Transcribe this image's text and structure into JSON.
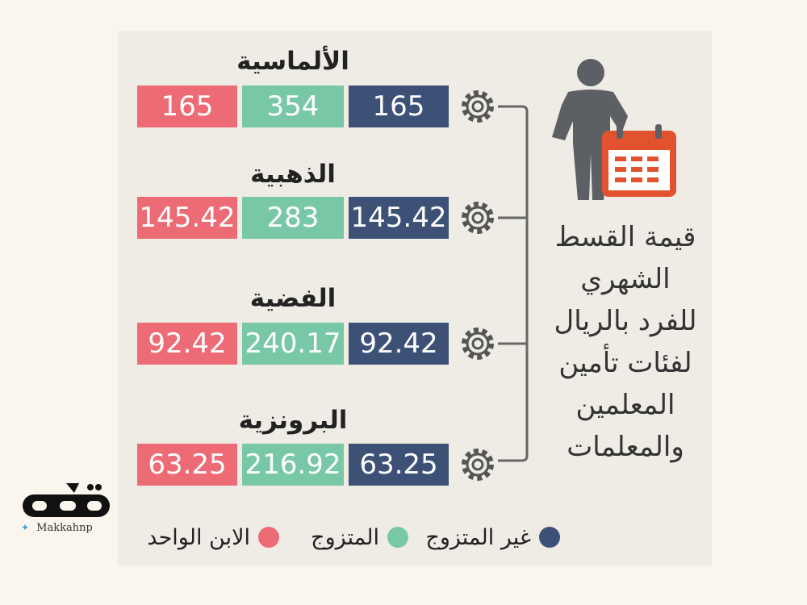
{
  "title_lines": [
    "قيمة القسط",
    "الشهري",
    "للفرد بالريال",
    "لفئات تأمين",
    "المعلمين",
    "والمعلمات"
  ],
  "tiers": [
    {
      "name": "الألماسية",
      "single": "165",
      "married": "354",
      "child": "165"
    },
    {
      "name": "الذهبية",
      "single": "145.42",
      "married": "283",
      "child": "145.42"
    },
    {
      "name": "الفضية",
      "single": "92.42",
      "married": "240.17",
      "child": "92.42"
    },
    {
      "name": "البرونزية",
      "single": "63.25",
      "married": "216.92",
      "child": "63.25"
    }
  ],
  "legend": {
    "single": "غير المتزوج",
    "married": "المتزوج",
    "child": "الابن الواحد"
  },
  "colors": {
    "single": "#3d5076",
    "married": "#78c8a6",
    "child": "#ec6b75",
    "calendar": "#e2522f",
    "figure": "#5c5f63"
  },
  "logo": {
    "handle": "Makkahnp"
  }
}
